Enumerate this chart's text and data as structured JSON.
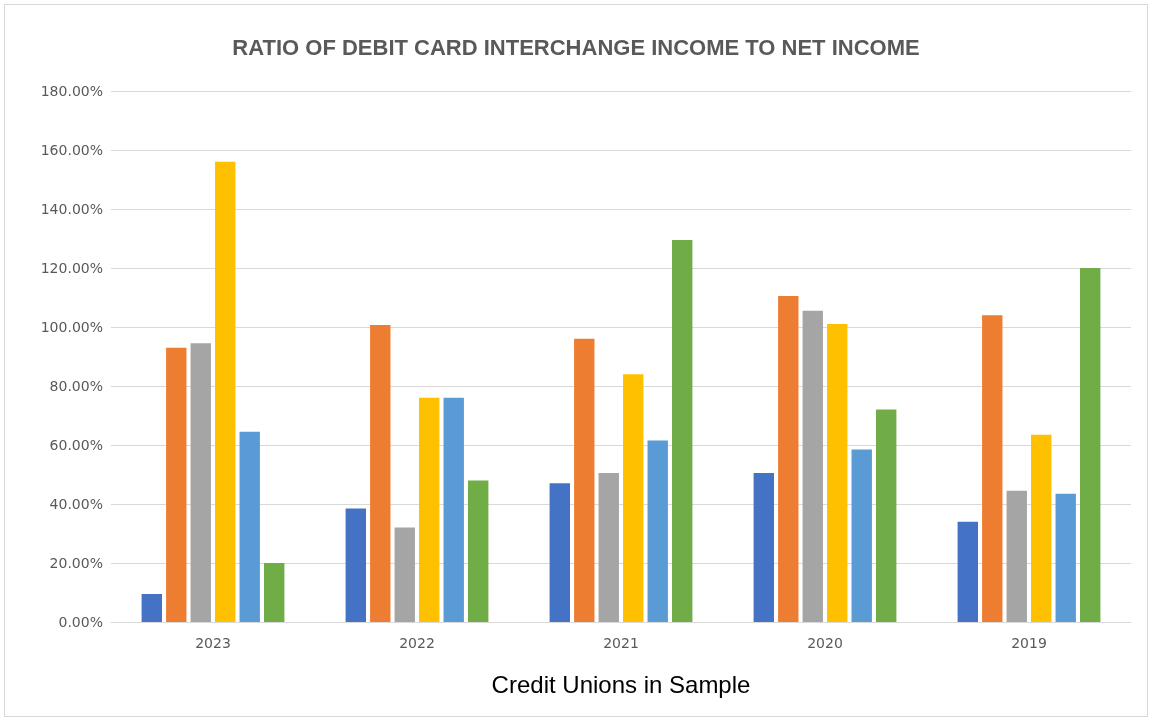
{
  "chart_data": {
    "type": "bar",
    "title": "RATIO OF DEBIT CARD INTERCHANGE INCOME TO NET INCOME",
    "xlabel": "Credit Unions in Sample",
    "categories": [
      "2023",
      "2022",
      "2021",
      "2020",
      "2019"
    ],
    "series": [
      {
        "color": "#4472c4",
        "values": [
          9.5,
          38.5,
          47,
          50.5,
          34
        ]
      },
      {
        "color": "#ed7d31",
        "values": [
          93,
          100.7,
          96,
          110.5,
          104
        ]
      },
      {
        "color": "#a5a5a5",
        "values": [
          94.5,
          32,
          50.5,
          105.5,
          44.5
        ]
      },
      {
        "color": "#ffc000",
        "values": [
          156,
          76,
          84,
          101,
          63.5
        ]
      },
      {
        "color": "#5b9bd5",
        "values": [
          64.5,
          76,
          61.5,
          58.5,
          43.5
        ]
      },
      {
        "color": "#70ad47",
        "values": [
          20,
          48,
          129.5,
          72,
          120
        ]
      }
    ],
    "ylim": [
      0,
      180
    ],
    "yticks": [
      {
        "value": 0,
        "label": "0.00%"
      },
      {
        "value": 20,
        "label": "20.00%"
      },
      {
        "value": 40,
        "label": "40.00%"
      },
      {
        "value": 60,
        "label": "60.00%"
      },
      {
        "value": 80,
        "label": "80.00%"
      },
      {
        "value": 100,
        "label": "100.00%"
      },
      {
        "value": 120,
        "label": "120.00%"
      },
      {
        "value": 140,
        "label": "140.00%"
      },
      {
        "value": 160,
        "label": "160.00%"
      },
      {
        "value": 180,
        "label": "180.00%"
      }
    ],
    "grid": "y"
  }
}
